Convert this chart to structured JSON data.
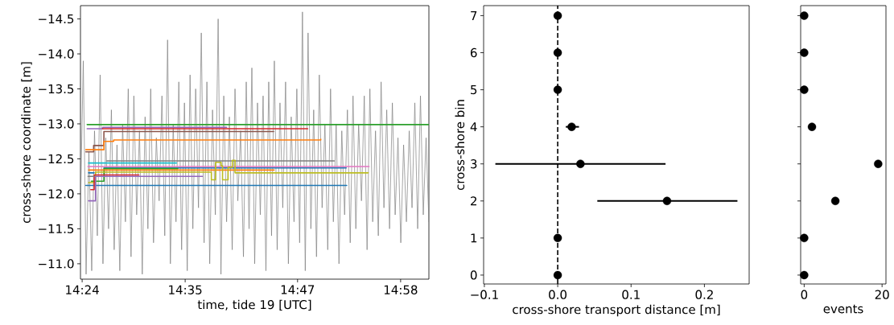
{
  "chart_data": [
    {
      "type": "line",
      "xlabel": "time, tide 19 [UTC]",
      "ylabel": "cross-shore coordinate [m]",
      "xlim": [
        14.397,
        15.017
      ],
      "ylim": [
        -10.78,
        -14.69
      ],
      "xticks": [
        {
          "value": 14.4,
          "label": "14:24"
        },
        {
          "value": 14.5833,
          "label": "14:35"
        },
        {
          "value": 14.7833,
          "label": "14:47"
        },
        {
          "value": 14.9667,
          "label": "14:58"
        }
      ],
      "yticks": [
        {
          "value": -14.5,
          "label": "−14.5"
        },
        {
          "value": -14.0,
          "label": "−14.0"
        },
        {
          "value": -13.5,
          "label": "−13.5"
        },
        {
          "value": -13.0,
          "label": "−13.0"
        },
        {
          "value": -12.5,
          "label": "−12.5"
        },
        {
          "value": -12.0,
          "label": "−12.0"
        },
        {
          "value": -11.5,
          "label": "−11.5"
        },
        {
          "value": -11.0,
          "label": "−11.0"
        }
      ],
      "series": [
        {
          "type": "line",
          "color": "#808080",
          "x": [
            14.397,
            14.402,
            14.407,
            14.412,
            14.417,
            14.422,
            14.427,
            14.432,
            14.437,
            14.442,
            14.447,
            14.452,
            14.457,
            14.462,
            14.467,
            14.472,
            14.477,
            14.482,
            14.487,
            14.492,
            14.497,
            14.502,
            14.507,
            14.512,
            14.517,
            14.522,
            14.527,
            14.532,
            14.537,
            14.542,
            14.547,
            14.552,
            14.557,
            14.562,
            14.567,
            14.572,
            14.577,
            14.582,
            14.587,
            14.592,
            14.597,
            14.602,
            14.607,
            14.612,
            14.617,
            14.622,
            14.627,
            14.632,
            14.637,
            14.642,
            14.647,
            14.652,
            14.657,
            14.662,
            14.667,
            14.672,
            14.677,
            14.682,
            14.687,
            14.692,
            14.697,
            14.702,
            14.707,
            14.712,
            14.717,
            14.722,
            14.727,
            14.732,
            14.737,
            14.742,
            14.747,
            14.752,
            14.757,
            14.762,
            14.767,
            14.772,
            14.777,
            14.782,
            14.787,
            14.792,
            14.797,
            14.802,
            14.807,
            14.812,
            14.817,
            14.822,
            14.827,
            14.832,
            14.837,
            14.842,
            14.847,
            14.852,
            14.857,
            14.862,
            14.867,
            14.872,
            14.877,
            14.882,
            14.887,
            14.892,
            14.897,
            14.902,
            14.907,
            14.912,
            14.917,
            14.922,
            14.927,
            14.932,
            14.937,
            14.942,
            14.947,
            14.952,
            14.957,
            14.962,
            14.967,
            14.972,
            14.977,
            14.982,
            14.987,
            14.992,
            14.997,
            15.002,
            15.007,
            15.012,
            15.017
          ],
          "values": [
            -11.8,
            -13.9,
            -10.85,
            -12.6,
            -10.9,
            -12.9,
            -11.4,
            -13.7,
            -11.0,
            -12.8,
            -11.5,
            -13.2,
            -11.2,
            -12.7,
            -10.9,
            -13.0,
            -11.6,
            -13.5,
            -11.1,
            -13.4,
            -11.7,
            -12.9,
            -10.85,
            -13.1,
            -11.5,
            -13.5,
            -11.3,
            -12.8,
            -11.9,
            -13.4,
            -11.4,
            -14.2,
            -11.0,
            -13.0,
            -11.6,
            -13.6,
            -11.2,
            -13.3,
            -10.9,
            -13.7,
            -11.5,
            -13.5,
            -11.8,
            -14.3,
            -11.3,
            -13.6,
            -11.0,
            -13.2,
            -11.7,
            -14.5,
            -10.85,
            -13.4,
            -11.6,
            -13.1,
            -11.2,
            -13.5,
            -11.9,
            -12.9,
            -11.1,
            -13.6,
            -11.5,
            -13.8,
            -11.0,
            -13.3,
            -11.7,
            -13.4,
            -10.9,
            -13.6,
            -11.4,
            -13.9,
            -11.2,
            -13.3,
            -11.8,
            -13.6,
            -11.0,
            -13.1,
            -11.6,
            -13.5,
            -11.3,
            -14.6,
            -10.9,
            -14.3,
            -11.5,
            -13.2,
            -11.1,
            -13.7,
            -11.8,
            -13.0,
            -11.2,
            -13.5,
            -11.6,
            -13.0,
            -11.0,
            -12.9,
            -11.7,
            -13.2,
            -11.3,
            -13.4,
            -11.5,
            -13.0,
            -11.9,
            -13.4,
            -11.2,
            -13.5,
            -11.6,
            -12.9,
            -11.4,
            -13.6,
            -11.8,
            -13.2,
            -11.5,
            -13.3,
            -11.7,
            -12.8,
            -11.3,
            -12.7,
            -11.6,
            -12.9,
            -11.8,
            -13.3,
            -11.5,
            -13.4,
            -11.7,
            -12.8,
            -11.6
          ]
        },
        {
          "type": "step",
          "color": "#2ca02c",
          "x": [
            14.4089,
            15.017
          ],
          "values": [
            -12.99,
            -12.99
          ]
        },
        {
          "type": "step",
          "color": "#9467bd",
          "x": [
            14.4089,
            14.4363,
            14.6572
          ],
          "values": [
            -12.93,
            -12.95,
            -12.95
          ]
        },
        {
          "type": "step",
          "color": "#d62728",
          "x": [
            14.4363,
            14.8013
          ],
          "values": [
            -12.93,
            -12.93
          ]
        },
        {
          "type": "step",
          "color": "#8c564b",
          "x": [
            14.4065,
            14.4204,
            14.4387,
            14.7407
          ],
          "values": [
            -12.6,
            -12.69,
            -12.89,
            -12.89
          ]
        },
        {
          "type": "step",
          "color": "#ff7f0e",
          "x": [
            14.4065,
            14.4387,
            14.4561,
            14.8246
          ],
          "values": [
            -12.63,
            -12.75,
            -12.77,
            -12.78
          ]
        },
        {
          "type": "step",
          "color": "#7f7f7f",
          "x": [
            14.4437,
            14.8484
          ],
          "values": [
            -12.47,
            -12.47
          ]
        },
        {
          "type": "step",
          "color": "#17becf",
          "x": [
            14.4114,
            14.5678
          ],
          "values": [
            -12.44,
            -12.44
          ]
        },
        {
          "type": "step",
          "color": "#e377c2",
          "x": [
            14.4104,
            14.9105
          ],
          "values": [
            -12.39,
            -12.39
          ]
        },
        {
          "type": "step",
          "color": "#1f77b4",
          "x": [
            14.4387,
            14.8698
          ],
          "values": [
            -12.37,
            -12.37
          ]
        },
        {
          "type": "step",
          "color": "#2ca02c",
          "x": [
            14.4164,
            14.4387,
            14.5703
          ],
          "values": [
            -12.18,
            -12.36,
            -12.36
          ]
        },
        {
          "type": "step",
          "color": "#ff7f0e",
          "x": [
            14.4114,
            14.7417
          ],
          "values": [
            -12.34,
            -12.34
          ]
        },
        {
          "type": "step",
          "color": "#bcbd22",
          "x": [
            14.4114,
            14.4238,
            14.6299,
            14.6374,
            14.6473,
            14.6498,
            14.6597,
            14.6672,
            14.6721,
            14.909
          ],
          "values": [
            -12.16,
            -12.31,
            -12.2,
            -12.45,
            -12.4,
            -12.2,
            -12.38,
            -12.48,
            -12.3,
            -12.3
          ]
        },
        {
          "type": "step",
          "color": "#1f77b4",
          "x": [
            14.4065,
            14.8708
          ],
          "values": [
            -12.12,
            -12.12
          ]
        },
        {
          "type": "step",
          "color": "#d62728",
          "x": [
            14.4154,
            14.4214,
            14.5008
          ],
          "values": [
            -12.06,
            -12.27,
            -12.27
          ]
        },
        {
          "type": "step",
          "color": "#9467bd",
          "x": [
            14.4114,
            14.4238,
            14.614
          ],
          "values": [
            -11.9,
            -12.25,
            -12.25
          ]
        },
        {
          "type": "step",
          "color": "#7f7f7f",
          "x": [
            14.4104,
            14.4214
          ],
          "values": [
            -12.25,
            -12.25
          ]
        },
        {
          "type": "step",
          "color": "#1f77b4",
          "x": [
            14.4114,
            14.4214
          ],
          "values": [
            -12.3,
            -12.3
          ]
        }
      ]
    },
    {
      "type": "scatter",
      "xlabel": "cross-shore transport distance [m]",
      "ylabel": "cross-shore bin",
      "xlim": [
        -0.101,
        0.261
      ],
      "ylim": [
        -0.24,
        7.27
      ],
      "xticks": [
        {
          "value": -0.1,
          "label": "−0.1"
        },
        {
          "value": 0,
          "label": "0.0"
        },
        0.1,
        0.2
      ],
      "yticks": [
        0,
        1,
        2,
        3,
        4,
        5,
        6,
        7
      ],
      "x": [
        0,
        0,
        0.149,
        0.031,
        0.019,
        0,
        0,
        0
      ],
      "values": [
        0,
        1,
        2,
        3,
        4,
        5,
        6,
        7
      ],
      "xerrors": [
        null,
        null,
        [
          0.054,
          0.245
        ],
        [
          -0.085,
          0.147
        ],
        [
          0.011,
          0.029
        ],
        null,
        null,
        null
      ],
      "color": "#000000",
      "marker": "circle",
      "ref_lines": [
        {
          "axis": "x",
          "value": 0,
          "color": "#000000",
          "line_style": "dashed"
        }
      ]
    },
    {
      "type": "scatter",
      "xlabel": "events",
      "xlim": [
        -0.9,
        21.0
      ],
      "ylim": [
        -0.24,
        7.27
      ],
      "xticks": [
        0,
        20
      ],
      "yticks": [
        0,
        1,
        2,
        3,
        4,
        5,
        6,
        7
      ],
      "x": [
        0,
        0,
        8,
        19,
        2,
        0,
        0,
        0
      ],
      "values": [
        0,
        1,
        2,
        3,
        4,
        5,
        6,
        7
      ],
      "color": "#000000",
      "marker": "circle",
      "tick_labels": "x"
    }
  ]
}
